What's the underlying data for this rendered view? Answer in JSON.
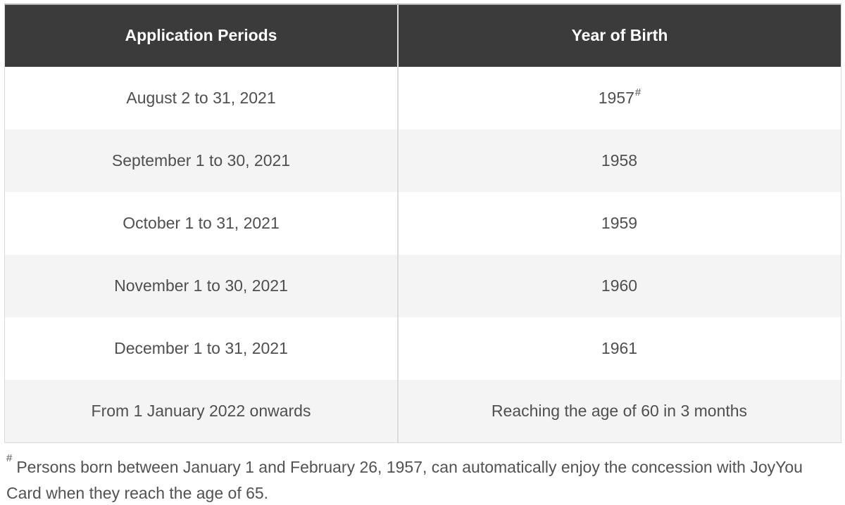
{
  "table": {
    "columns": [
      {
        "label": "Application Periods"
      },
      {
        "label": "Year of Birth"
      }
    ],
    "rows": [
      {
        "period": "August 2 to 31, 2021",
        "year": "1957",
        "year_superscript": "#"
      },
      {
        "period": "September 1 to 30, 2021",
        "year": "1958",
        "year_superscript": ""
      },
      {
        "period": "October 1 to 31, 2021",
        "year": "1959",
        "year_superscript": ""
      },
      {
        "period": "November 1 to 30, 2021",
        "year": "1960",
        "year_superscript": ""
      },
      {
        "period": "December 1 to 31, 2021",
        "year": "1961",
        "year_superscript": ""
      },
      {
        "period": "From 1 January 2022 onwards",
        "year": "Reaching the age of 60 in 3 months",
        "year_superscript": ""
      }
    ]
  },
  "footnote": {
    "marker": "#",
    "text": "Persons born between January 1 and February 26, 1957, can automatically enjoy the concession with JoyYou Card when they reach the age of 65."
  },
  "colors": {
    "header_bg": "#3b3b3b",
    "header_text": "#ffffff",
    "row_alt_bg": "#f4f4f4",
    "body_text": "#4f4f4f",
    "column_divider": "#dcdcdc",
    "outer_border_top": "#b3b3b3",
    "outer_border": "#d9d9d9"
  },
  "chart_data": {
    "type": "table",
    "title": "",
    "columns": [
      "Application Periods",
      "Year of Birth"
    ],
    "rows": [
      [
        "August 2 to 31, 2021",
        "1957#"
      ],
      [
        "September 1 to 30, 2021",
        "1958"
      ],
      [
        "October 1 to 31, 2021",
        "1959"
      ],
      [
        "November 1 to 30, 2021",
        "1960"
      ],
      [
        "December 1 to 31, 2021",
        "1961"
      ],
      [
        "From 1 January 2022 onwards",
        "Reaching the age of 60 in 3 months"
      ]
    ],
    "footnote": "# Persons born between January 1 and February 26, 1957, can automatically enjoy the concession with JoyYou Card when they reach the age of 65.",
    "layout_hints": {
      "header_style": "dark",
      "zebra_striping": true,
      "grid": "column-divider-only"
    }
  }
}
